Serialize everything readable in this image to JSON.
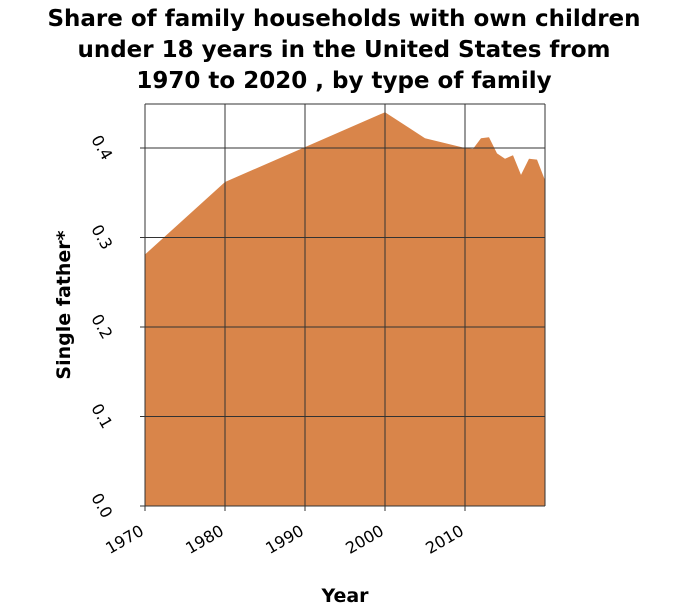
{
  "title_lines": [
    "Share of family households with own children",
    "under 18 years in the United States from",
    "1970 to 2020 , by type of family"
  ],
  "colors": {
    "area": "#d9854a",
    "grid": "#333333"
  },
  "chart_data": {
    "type": "area",
    "title": "Share of family households with own children under 18 years in the United States from 1970 to 2020 , by type of family",
    "xlabel": "Year",
    "ylabel": "Single father*",
    "xlim": [
      1970,
      2020
    ],
    "ylim": [
      0.0,
      0.4
    ],
    "x_ticks": [
      1970,
      1980,
      1990,
      2000,
      2010
    ],
    "x_tick_labels": [
      "1970",
      "1980",
      "1990",
      "2000",
      "2010"
    ],
    "y_ticks": [
      0.0,
      0.1,
      0.2,
      0.3,
      0.4
    ],
    "y_tick_labels": [
      "0.0",
      "0.1",
      "0.2",
      "0.3",
      "0.4"
    ],
    "grid": true,
    "series": [
      {
        "x": [
          1970,
          1980,
          1990,
          2000,
          2005,
          2010,
          2011,
          2012,
          2013,
          2014,
          2015,
          2016,
          2017,
          2018,
          2019,
          2020
        ],
        "y": [
          0.281,
          0.362,
          0.401,
          0.44,
          0.411,
          0.4,
          0.399,
          0.411,
          0.412,
          0.394,
          0.388,
          0.392,
          0.37,
          0.388,
          0.387,
          0.364
        ]
      }
    ]
  }
}
